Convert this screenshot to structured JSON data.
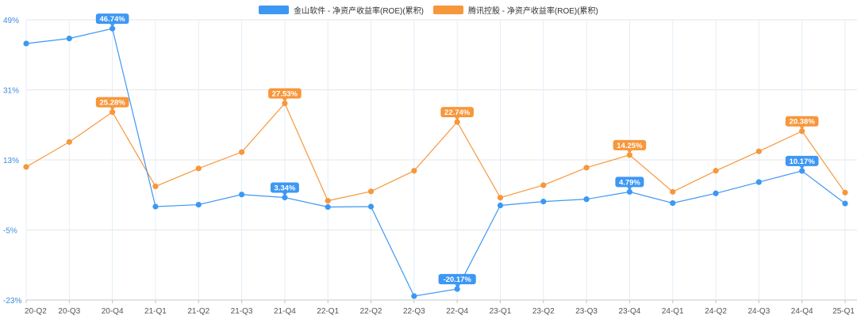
{
  "chart_data": {
    "type": "line",
    "categories": [
      "20-Q2",
      "20-Q3",
      "20-Q4",
      "21-Q1",
      "21-Q2",
      "21-Q3",
      "21-Q4",
      "22-Q1",
      "22-Q2",
      "22-Q3",
      "22-Q4",
      "23-Q1",
      "23-Q2",
      "23-Q3",
      "23-Q4",
      "24-Q1",
      "24-Q2",
      "24-Q3",
      "24-Q4",
      "25-Q1"
    ],
    "y_ticks": [
      "49%",
      "31%",
      "13%",
      "-5%",
      "-23%"
    ],
    "ylim": [
      -23,
      49
    ],
    "grid": true,
    "legend_position": "top-center",
    "series": [
      {
        "name": "金山软件 - 净资产收益率(ROE)(累积)",
        "color": "#3d97f3",
        "values": [
          42.9,
          44.2,
          46.74,
          1.0,
          1.5,
          4.1,
          3.34,
          0.9,
          1.0,
          -22.0,
          -20.17,
          1.3,
          2.3,
          2.9,
          4.79,
          1.9,
          4.4,
          7.3,
          10.17,
          1.8
        ],
        "labels": {
          "2": "46.74%",
          "6": "3.34%",
          "10": "-20.17%",
          "14": "4.79%",
          "18": "10.17%"
        }
      },
      {
        "name": "腾讯控股 - 净资产收益率(ROE)(累积)",
        "color": "#f7973b",
        "values": [
          11.2,
          17.6,
          25.28,
          6.2,
          10.8,
          15.0,
          27.53,
          2.5,
          4.9,
          10.2,
          22.74,
          3.3,
          6.5,
          11.0,
          14.25,
          4.8,
          10.2,
          15.2,
          20.38,
          4.6
        ],
        "labels": {
          "2": "25.28%",
          "6": "27.53%",
          "10": "22.74%",
          "14": "14.25%",
          "18": "20.38%"
        }
      }
    ]
  }
}
